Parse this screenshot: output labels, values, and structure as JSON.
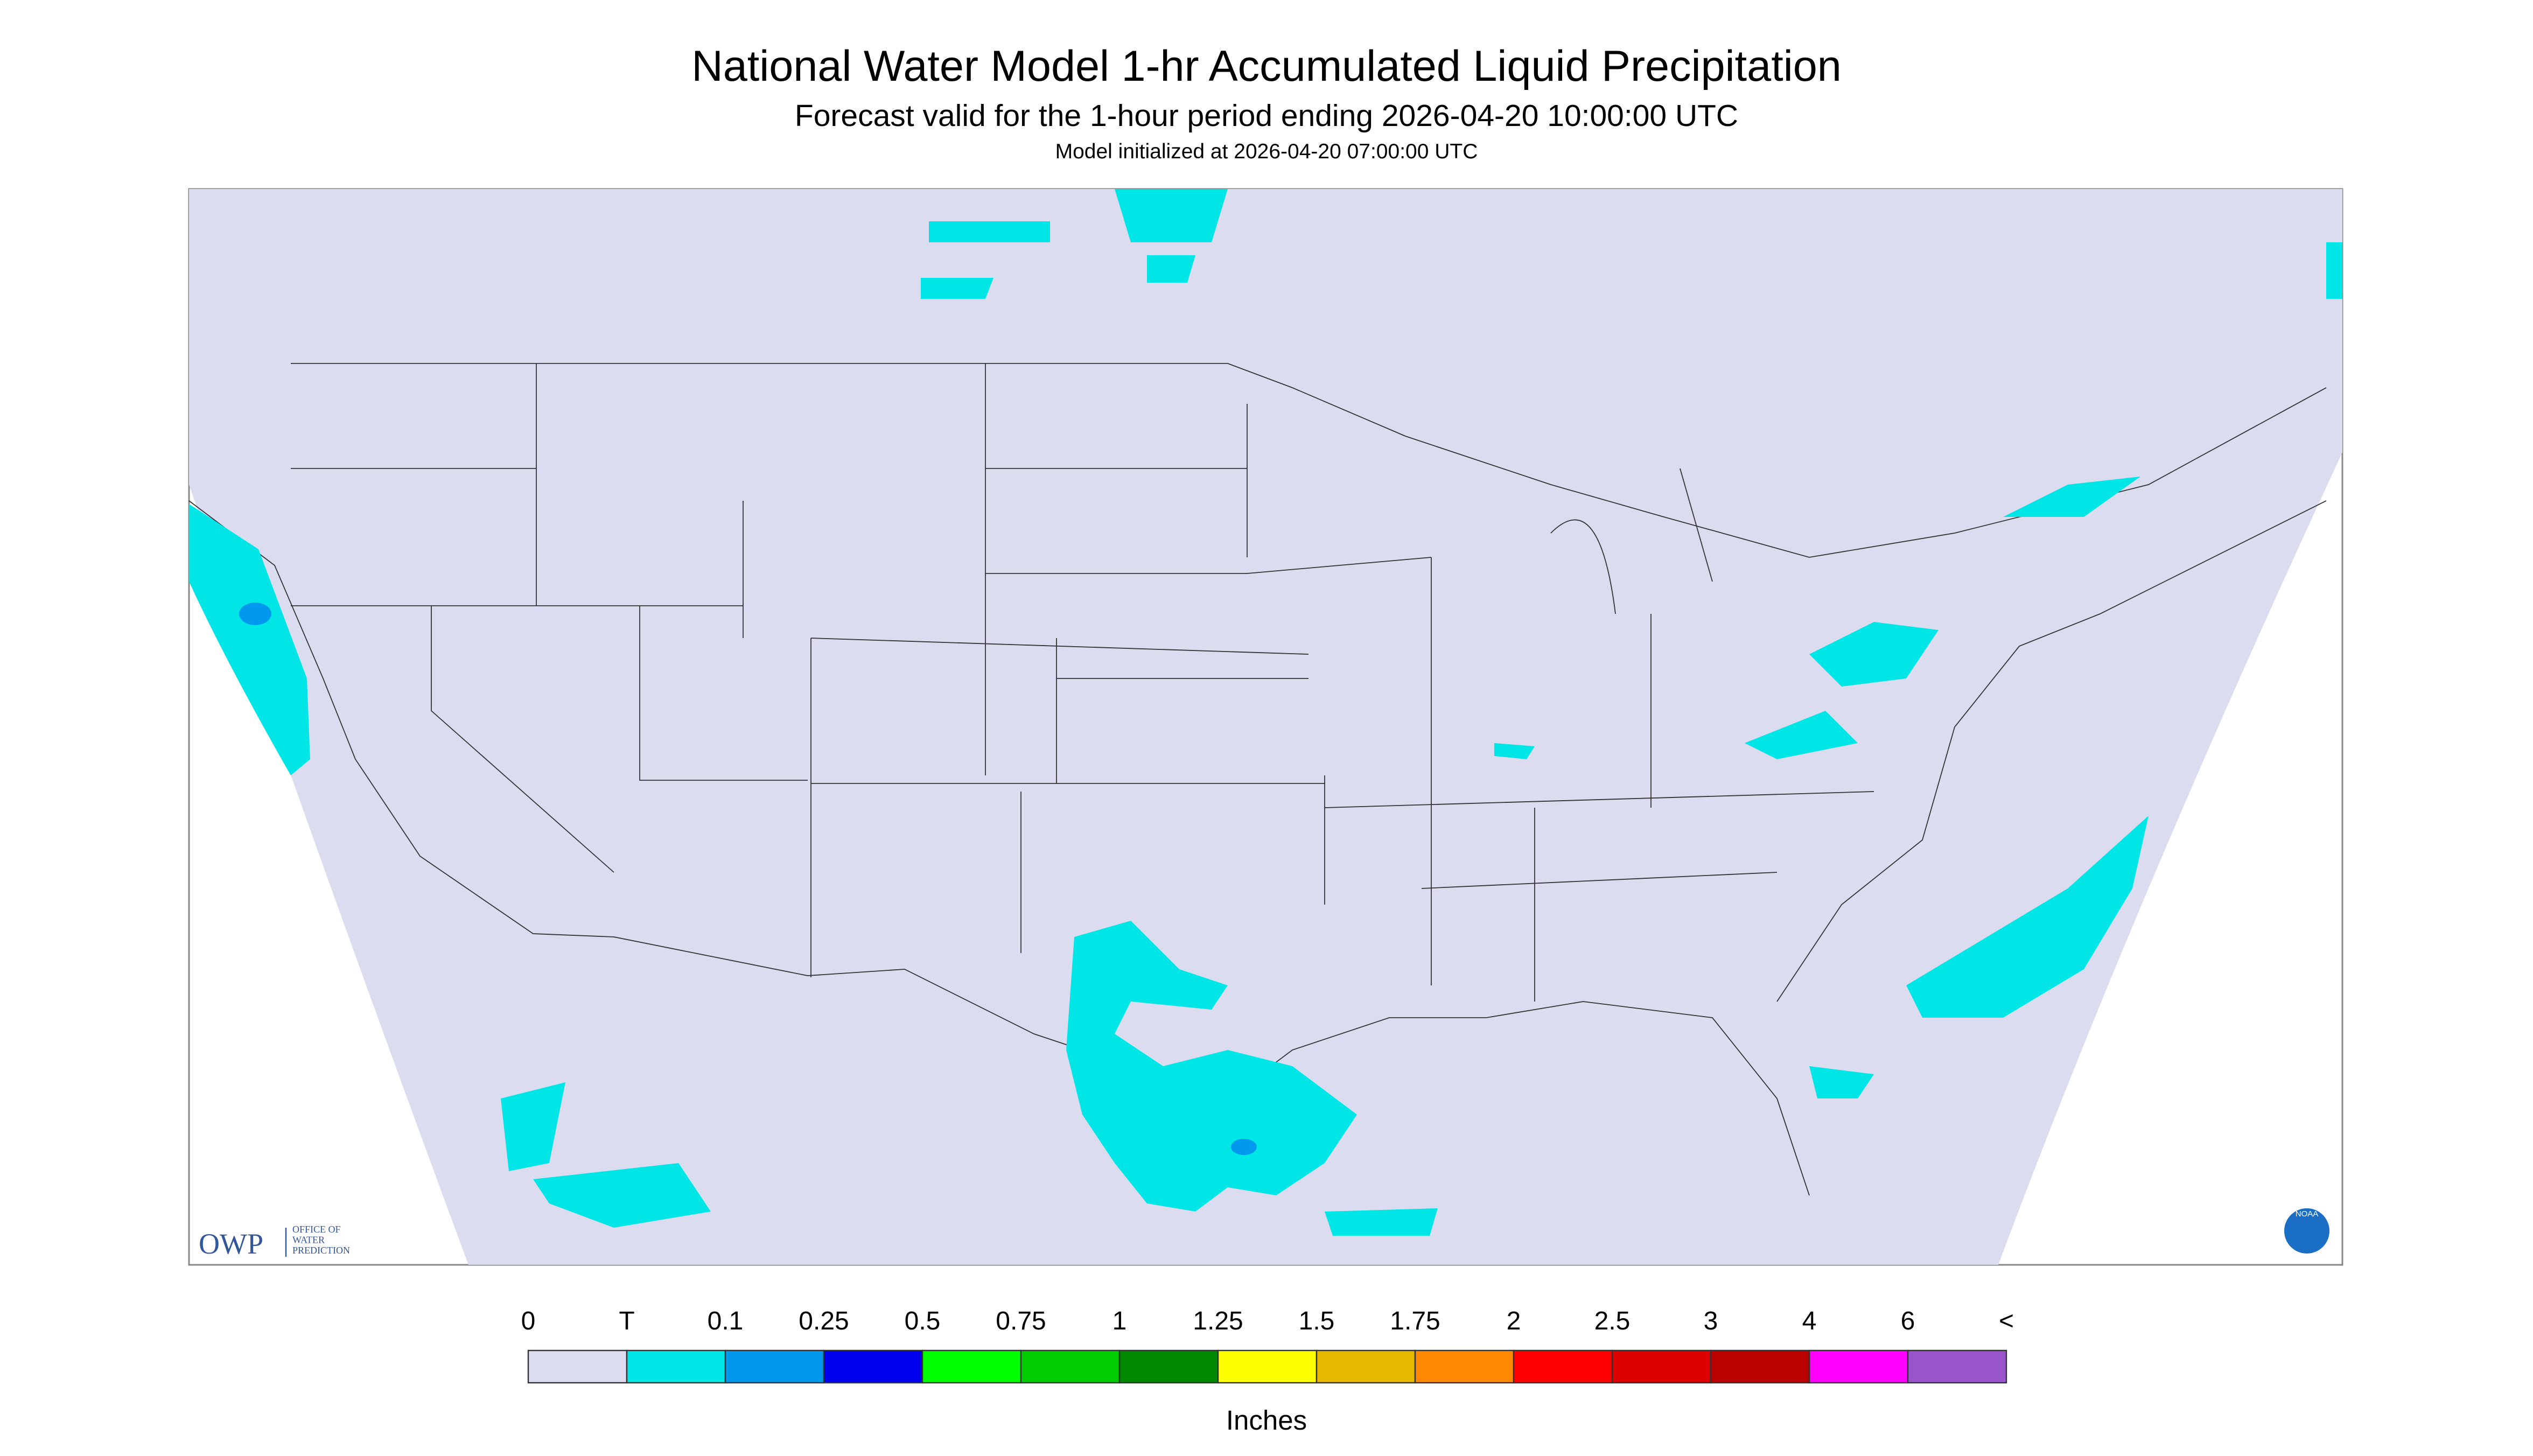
{
  "header": {
    "title": "National Water Model 1-hr Accumulated Liquid Precipitation",
    "subtitle": "Forecast valid for the 1-hour period ending 2026-04-20 10:00:00 UTC",
    "note": "Model initialized at 2026-04-20 07:00:00 UTC"
  },
  "logo": {
    "acronym": "OWP",
    "lines": [
      "OFFICE OF",
      "WATER",
      "PREDICTION"
    ],
    "badge": "NOAA"
  },
  "legend": {
    "labels": [
      "0",
      "T",
      "0.1",
      "0.25",
      "0.5",
      "0.75",
      "1",
      "1.25",
      "1.5",
      "1.75",
      "2",
      "2.5",
      "3",
      "4",
      "6",
      "<"
    ],
    "colors": [
      "#dcdcf0",
      "#00e5e5",
      "#0099ee",
      "#0000ee",
      "#00ff00",
      "#00cc00",
      "#008800",
      "#ffff00",
      "#e6b800",
      "#ff8800",
      "#ff0000",
      "#dd0000",
      "#bb0000",
      "#ff00ff",
      "#9955cc"
    ],
    "unit": "Inches"
  }
}
